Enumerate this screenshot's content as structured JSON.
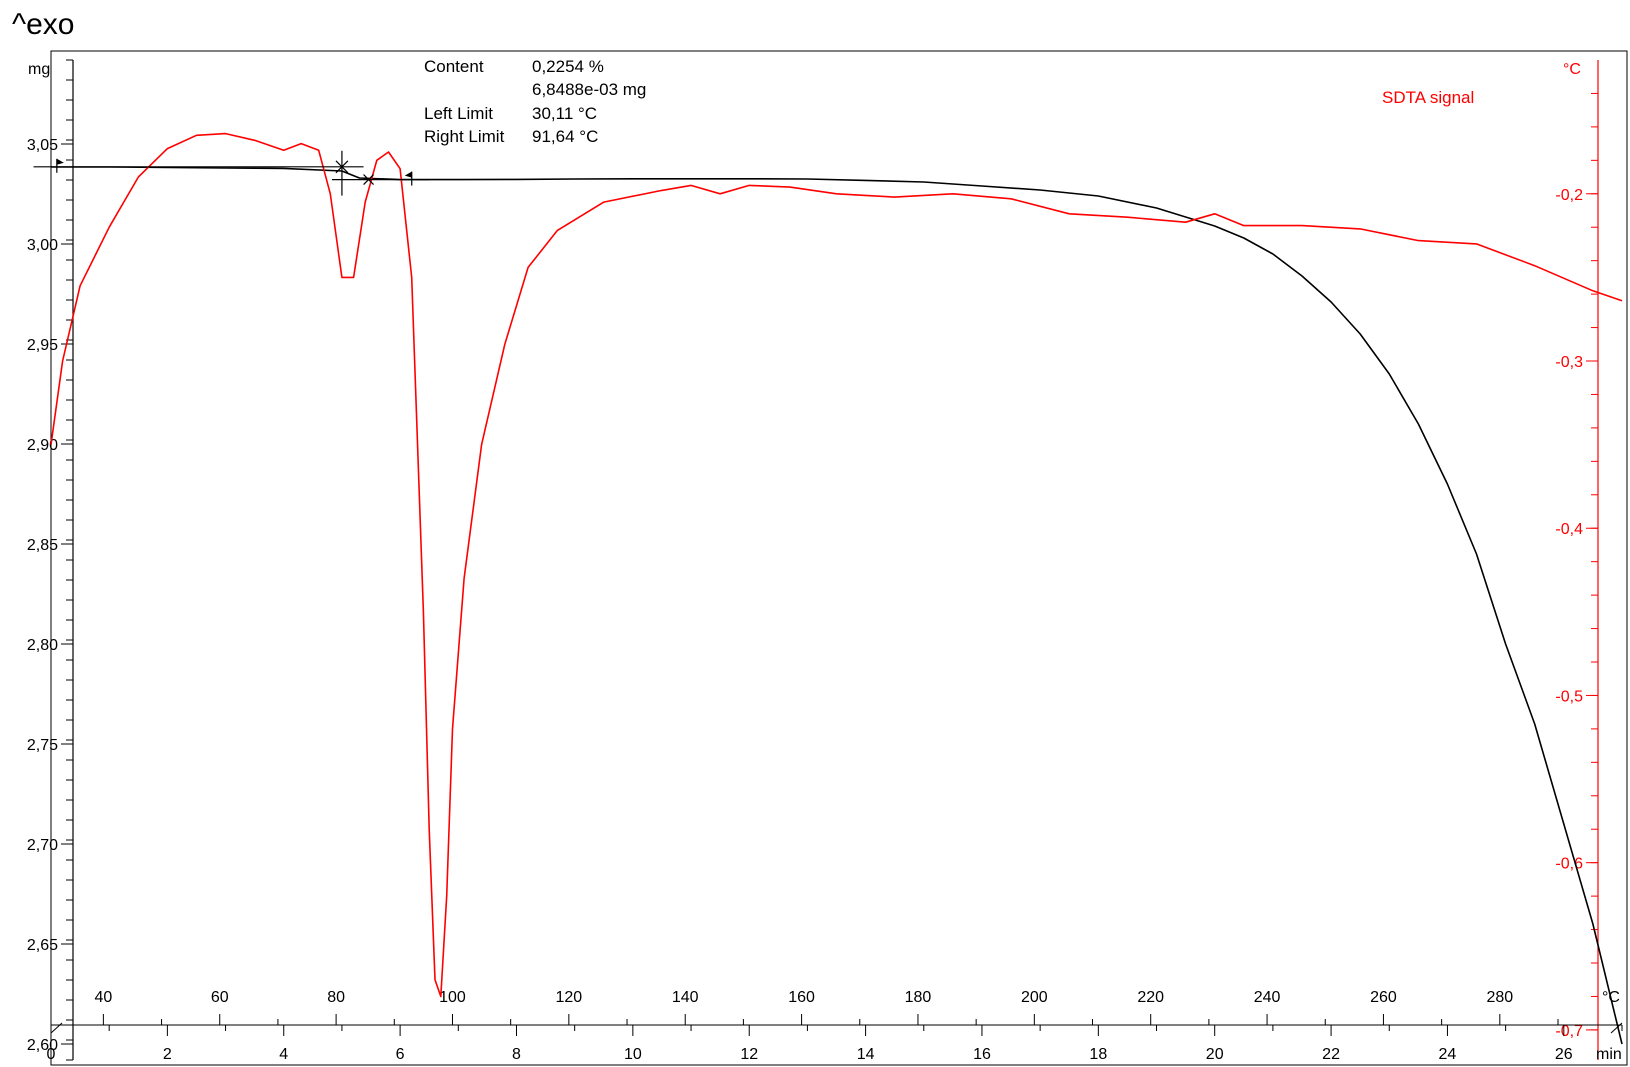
{
  "header": {
    "exo_label": "^exo"
  },
  "annotation": {
    "content_label": "Content",
    "content_percent": "0,2254 %",
    "content_mass": "6,8488e-03 mg",
    "left_limit_label": "Left Limit",
    "left_limit_value": "30,11 °C",
    "right_limit_label": "Right Limit",
    "right_limit_value": "91,64 °C"
  },
  "chart_data": {
    "type": "line",
    "title": "",
    "x_axis": {
      "unit": "min",
      "range": [
        0,
        27
      ],
      "ticks": [
        0,
        2,
        4,
        6,
        8,
        10,
        12,
        14,
        16,
        18,
        20,
        22,
        24,
        26
      ]
    },
    "temperature_axis": {
      "unit": "°C",
      "ticks": [
        40,
        60,
        80,
        100,
        120,
        140,
        160,
        180,
        200,
        220,
        240,
        260,
        280
      ],
      "ticks_at_min": [
        0.9,
        2.9,
        4.9,
        6.9,
        8.9,
        10.9,
        12.9,
        14.9,
        16.9,
        18.9,
        20.9,
        22.9,
        24.9
      ]
    },
    "y_left": {
      "unit": "mg",
      "range": [
        2.592,
        3.092
      ],
      "ticks": [
        2.6,
        2.65,
        2.7,
        2.75,
        2.8,
        2.85,
        2.9,
        2.95,
        3.0,
        3.05
      ],
      "tick_labels": [
        "2,60",
        "2,65",
        "2,70",
        "2,75",
        "2,80",
        "2,85",
        "2,90",
        "2,95",
        "3,00",
        "3,05"
      ]
    },
    "y_right": {
      "unit": "°C",
      "range": [
        -0.718,
        -0.12
      ],
      "ticks": [
        -0.2,
        -0.3,
        -0.4,
        -0.5,
        -0.6,
        -0.7
      ],
      "tick_labels": [
        "-0,2",
        "-0,3",
        "-0,4",
        "-0,5",
        "-0,6",
        "-0,7"
      ],
      "color": "#ff0000"
    },
    "series": [
      {
        "name": "",
        "axis": "left",
        "color": "#000000",
        "x": [
          0,
          1,
          2,
          3,
          4,
          5,
          5.3,
          6,
          7,
          8,
          9,
          10,
          11,
          12,
          13,
          14,
          15,
          16,
          17,
          18,
          19,
          20,
          20.5,
          21,
          21.5,
          22,
          22.5,
          23,
          23.5,
          24,
          24.5,
          25,
          25.5,
          26,
          26.5,
          27
        ],
        "y": [
          3.0385,
          3.0385,
          3.0383,
          3.038,
          3.0378,
          3.0365,
          3.033,
          3.0322,
          3.0322,
          3.0323,
          3.0325,
          3.0326,
          3.0326,
          3.0326,
          3.0325,
          3.0318,
          3.031,
          3.029,
          3.027,
          3.024,
          3.018,
          3.009,
          3.003,
          2.995,
          2.984,
          2.971,
          2.955,
          2.935,
          2.91,
          2.88,
          2.845,
          2.8,
          2.76,
          2.71,
          2.66,
          2.6
        ]
      },
      {
        "name": "SDTA signal",
        "axis": "right",
        "color": "#ff0000",
        "x": [
          0,
          0.2,
          0.5,
          1.0,
          1.5,
          2.0,
          2.5,
          3.0,
          3.5,
          4.0,
          4.3,
          4.6,
          4.8,
          5.0,
          5.2,
          5.4,
          5.6,
          5.8,
          6.0,
          6.2,
          6.4,
          6.5,
          6.6,
          6.7,
          6.8,
          6.9,
          7.1,
          7.4,
          7.8,
          8.2,
          8.7,
          9.5,
          10.5,
          11.0,
          11.5,
          12.0,
          12.7,
          13.5,
          14.5,
          15.5,
          16.5,
          17.5,
          18.5,
          19.5,
          20.0,
          20.5,
          21.5,
          22.5,
          23.5,
          24.5,
          25.5,
          26.5,
          27.0
        ],
        "y": [
          -0.35,
          -0.3,
          -0.255,
          -0.22,
          -0.19,
          -0.173,
          -0.165,
          -0.164,
          -0.168,
          -0.174,
          -0.17,
          -0.174,
          -0.2,
          -0.25,
          -0.25,
          -0.205,
          -0.18,
          -0.175,
          -0.185,
          -0.25,
          -0.45,
          -0.58,
          -0.67,
          -0.68,
          -0.62,
          -0.52,
          -0.43,
          -0.35,
          -0.29,
          -0.244,
          -0.222,
          -0.205,
          -0.198,
          -0.195,
          -0.2,
          -0.195,
          -0.196,
          -0.2,
          -0.202,
          -0.2,
          -0.203,
          -0.212,
          -0.214,
          -0.217,
          -0.212,
          -0.219,
          -0.219,
          -0.221,
          -0.228,
          -0.23,
          -0.243,
          -0.258,
          -0.264
        ]
      }
    ],
    "baseline_markers": {
      "left_limit_min": 0.1,
      "right_limit_min": 6.2,
      "mid_min": 5.2,
      "mid_marker_min": 5.0,
      "upper_level": 3.0386,
      "lower_level": 3.0322
    }
  }
}
